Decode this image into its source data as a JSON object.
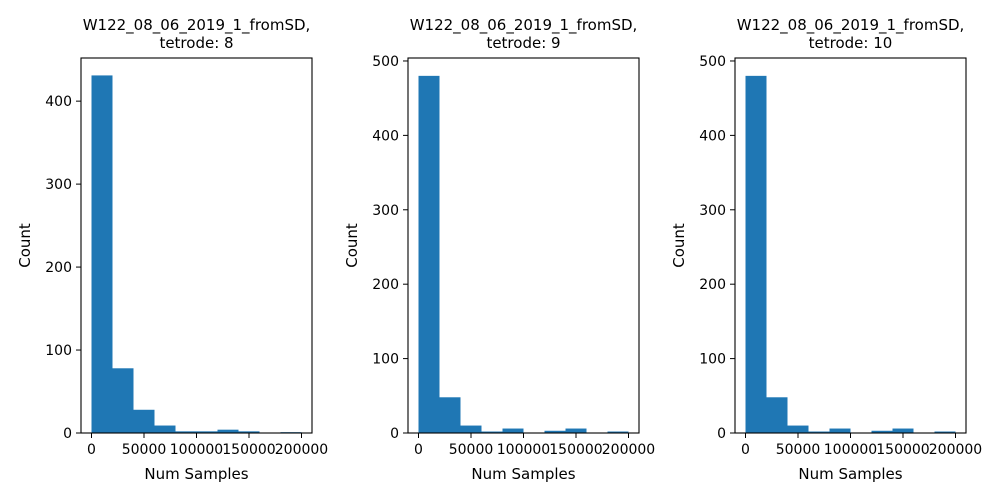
{
  "chart_data": [
    {
      "type": "bar",
      "title": [
        "W122_08_06_2019_1_fromSD,",
        "tetrode: 8"
      ],
      "xlabel": "Num Samples",
      "ylabel": "Count",
      "xlim": [
        -10000,
        210000
      ],
      "ylim": [
        0,
        452
      ],
      "xticks": [
        0,
        50000,
        100000,
        150000,
        200000
      ],
      "xtick_labels": [
        "0",
        "50000",
        "100000",
        "150000",
        "200000"
      ],
      "yticks": [
        0,
        100,
        200,
        300,
        400
      ],
      "ytick_labels": [
        "0",
        "100",
        "200",
        "300",
        "400"
      ],
      "bin_edges": [
        0,
        20000,
        40000,
        60000,
        80000,
        100000,
        120000,
        140000,
        160000,
        180000,
        200000
      ],
      "values": [
        431,
        78,
        28,
        9,
        2,
        2,
        4,
        2,
        0,
        1
      ],
      "color": "#1f77b4",
      "grid": false
    },
    {
      "type": "bar",
      "title": [
        "W122_08_06_2019_1_fromSD,",
        "tetrode: 9"
      ],
      "xlabel": "Num Samples",
      "ylabel": "Count",
      "xlim": [
        -10000,
        210000
      ],
      "ylim": [
        0,
        504
      ],
      "xticks": [
        0,
        50000,
        100000,
        150000,
        200000
      ],
      "xtick_labels": [
        "0",
        "50000",
        "100000",
        "150000",
        "200000"
      ],
      "yticks": [
        0,
        100,
        200,
        300,
        400,
        500
      ],
      "ytick_labels": [
        "0",
        "100",
        "200",
        "300",
        "400",
        "500"
      ],
      "bin_edges": [
        0,
        20000,
        40000,
        60000,
        80000,
        100000,
        120000,
        140000,
        160000,
        180000,
        200000
      ],
      "values": [
        480,
        48,
        10,
        2,
        6,
        0,
        3,
        6,
        0,
        2
      ],
      "color": "#1f77b4",
      "grid": false
    },
    {
      "type": "bar",
      "title": [
        "W122_08_06_2019_1_fromSD,",
        "tetrode: 10"
      ],
      "xlabel": "Num Samples",
      "ylabel": "Count",
      "xlim": [
        -10000,
        210000
      ],
      "ylim": [
        0,
        504
      ],
      "xticks": [
        0,
        50000,
        100000,
        150000,
        200000
      ],
      "xtick_labels": [
        "0",
        "50000",
        "100000",
        "150000",
        "200000"
      ],
      "yticks": [
        0,
        100,
        200,
        300,
        400,
        500
      ],
      "ytick_labels": [
        "0",
        "100",
        "200",
        "300",
        "400",
        "500"
      ],
      "bin_edges": [
        0,
        20000,
        40000,
        60000,
        80000,
        100000,
        120000,
        140000,
        160000,
        180000,
        200000
      ],
      "values": [
        480,
        48,
        10,
        2,
        6,
        0,
        3,
        6,
        0,
        2
      ],
      "color": "#1f77b4",
      "grid": false
    }
  ]
}
